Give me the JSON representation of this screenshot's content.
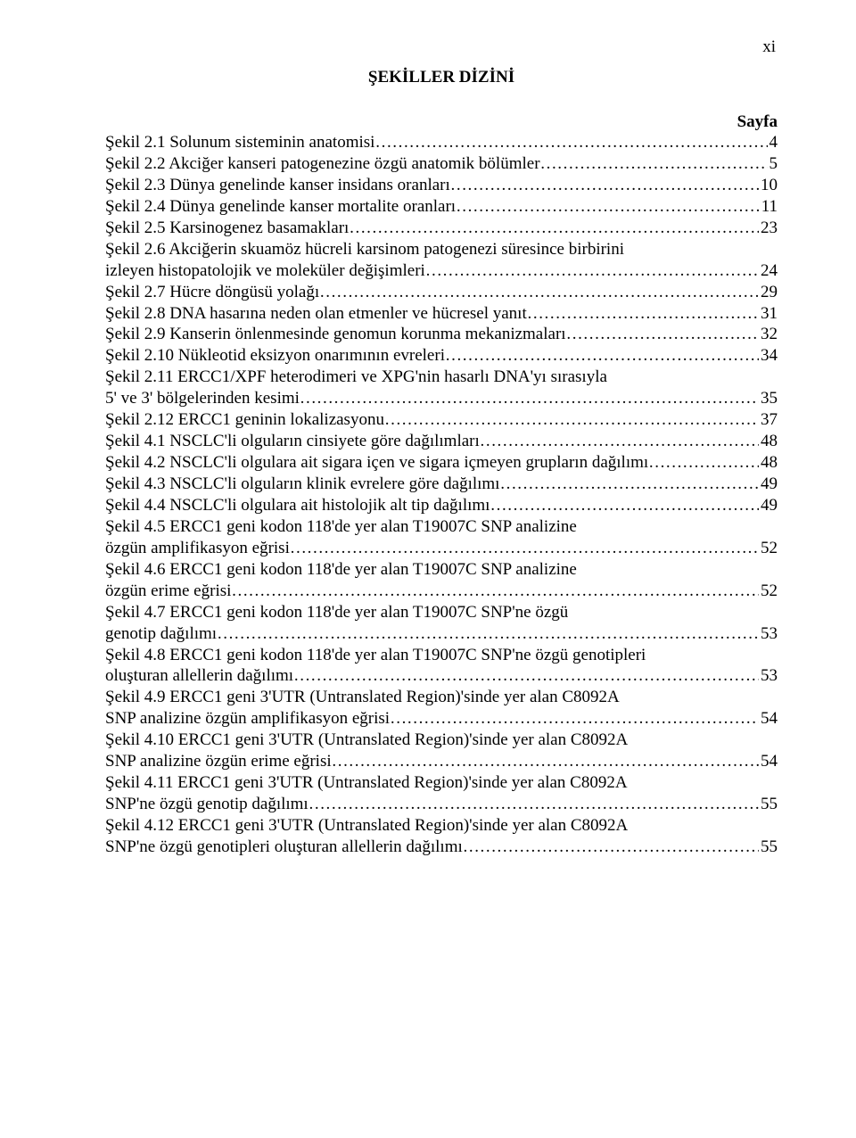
{
  "page_number": "xi",
  "heading": "ŞEKİLLER DİZİNİ",
  "sayfa_label": "Sayfa",
  "colors": {
    "text": "#000000",
    "background": "#ffffff"
  },
  "typography": {
    "font_family": "Times New Roman",
    "body_fontsize_pt": 12,
    "heading_fontsize_pt": 12,
    "heading_weight": "bold"
  },
  "entries": [
    {
      "label": "Şekil 2.1 Solunum sisteminin anatomisi",
      "page": "4"
    },
    {
      "label": "Şekil 2.2 Akciğer kanseri patogenezine özgü anatomik bölümler",
      "page": "5"
    },
    {
      "label": "Şekil 2.3 Dünya genelinde kanser insidans oranları",
      "page": "10"
    },
    {
      "label": "Şekil 2.4 Dünya genelinde kanser mortalite oranları",
      "page": "11"
    },
    {
      "label": "Şekil 2.5 Karsinogenez basamakları",
      "page": "23"
    },
    {
      "label_lines": [
        "Şekil 2.6 Akciğerin skuamöz hücreli karsinom patogenezi süresince birbirini",
        " izleyen  histopatolojik ve moleküler değişimleri"
      ],
      "page": "24"
    },
    {
      "label": "Şekil 2.7 Hücre döngüsü yolağı",
      "page": "29"
    },
    {
      "label": "Şekil 2.8 DNA hasarına neden olan etmenler ve hücresel yanıt",
      "page": "31"
    },
    {
      "label": "Şekil 2.9 Kanserin önlenmesinde genomun korunma mekanizmaları",
      "page": "32"
    },
    {
      "label": "Şekil 2.10 Nükleotid eksizyon onarımının evreleri",
      "page": "34"
    },
    {
      "label_lines": [
        "Şekil 2.11 ERCC1/XPF heterodimeri ve XPG'nin hasarlı DNA'yı sırasıyla",
        "5' ve 3' bölgelerinden kesimi"
      ],
      "page": "35"
    },
    {
      "label": "Şekil 2.12 ERCC1 geninin lokalizasyonu",
      "page": "37"
    },
    {
      "label": "Şekil 4.1 NSCLC'li olguların cinsiyete göre dağılımları",
      "page": "48"
    },
    {
      "label": "Şekil 4.2 NSCLC'li olgulara ait sigara içen ve sigara içmeyen grupların dağılımı",
      "page": "48"
    },
    {
      "label": "Şekil 4.3 NSCLC'li olguların klinik evrelere göre dağılımı",
      "page": "49"
    },
    {
      "label": "Şekil 4.4 NSCLC'li olgulara ait histolojik alt tip dağılımı",
      "page": "49"
    },
    {
      "label_lines": [
        "Şekil 4.5 ERCC1 geni kodon 118'de yer alan T19007C SNP analizine",
        "özgün amplifikasyon eğrisi"
      ],
      "page": "52"
    },
    {
      "label_lines": [
        "Şekil 4.6 ERCC1 geni kodon 118'de yer alan T19007C SNP analizine",
        "özgün erime eğrisi"
      ],
      "page": "52"
    },
    {
      "label_lines": [
        "Şekil 4.7 ERCC1 geni kodon 118'de yer alan T19007C SNP'ne özgü",
        "genotip dağılımı"
      ],
      "page": "53"
    },
    {
      "label_lines": [
        "Şekil 4.8 ERCC1 geni kodon 118'de yer alan T19007C SNP'ne özgü genotipleri",
        "oluşturan allellerin dağılımı"
      ],
      "page": "53"
    },
    {
      "label_lines": [
        "Şekil 4.9 ERCC1 geni 3'UTR (Untranslated Region)'sinde yer alan C8092A",
        "SNP analizine özgün amplifikasyon eğrisi"
      ],
      "page": "54"
    },
    {
      "label_lines": [
        "Şekil 4.10 ERCC1 geni 3'UTR (Untranslated Region)'sinde yer alan C8092A",
        "SNP analizine özgün erime eğrisi"
      ],
      "page": "54"
    },
    {
      "label_lines": [
        "Şekil 4.11 ERCC1 geni 3'UTR (Untranslated Region)'sinde yer alan C8092A",
        "SNP'ne özgü genotip dağılımı"
      ],
      "page": "55"
    },
    {
      "label_lines": [
        "Şekil 4.12 ERCC1 geni 3'UTR (Untranslated Region)'sinde yer alan C8092A",
        "SNP'ne özgü genotipleri oluşturan allellerin dağılımı"
      ],
      "page": "55"
    }
  ]
}
